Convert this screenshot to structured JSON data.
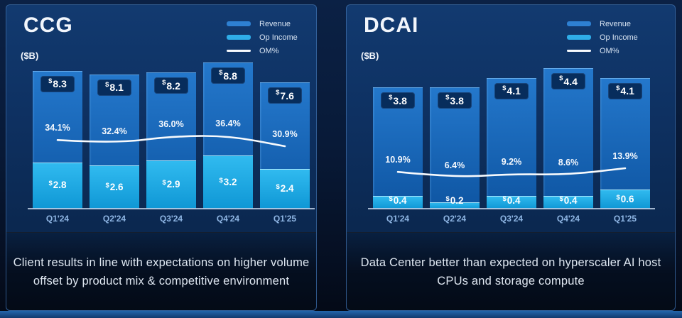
{
  "colors": {
    "background": "#081a38",
    "panel_border": "#5c92d2",
    "revenue_bar_top": "#2478cc",
    "revenue_bar_bottom": "#0e55a2",
    "op_income_top": "#31bbf0",
    "op_income_bottom": "#0f97d5",
    "om_line": "#f7fafd",
    "value_pill_bg": "#072d5c",
    "legend_revenue": "#2e80d2",
    "legend_op_income": "#2fade8",
    "text_primary": "#f2f6fc",
    "text_muted": "#8fb6e4",
    "caption_text": "#dfe7f1",
    "bottom_strip": "#2466ac"
  },
  "chart_data": [
    {
      "type": "bar",
      "title": "CCG",
      "units_label": "($B)",
      "categories": [
        "Q1'24",
        "Q2'24",
        "Q3'24",
        "Q4'24",
        "Q1'25"
      ],
      "series": [
        {
          "name": "Revenue",
          "type": "bar",
          "unit": "$B",
          "values": [
            8.3,
            8.1,
            8.2,
            8.8,
            7.6
          ],
          "labels": [
            "$8.3",
            "$8.1",
            "$8.2",
            "$8.8",
            "$7.6"
          ]
        },
        {
          "name": "Op Income",
          "type": "bar",
          "unit": "$B",
          "values": [
            2.8,
            2.6,
            2.9,
            3.2,
            2.4
          ],
          "labels": [
            "$2.8",
            "$2.6",
            "$2.9",
            "$3.2",
            "$2.4"
          ]
        },
        {
          "name": "OM%",
          "type": "line",
          "unit": "%",
          "values": [
            34.1,
            32.4,
            36.0,
            36.4,
            30.9
          ],
          "labels": [
            "34.1%",
            "32.4%",
            "36.0%",
            "36.4%",
            "30.9%"
          ]
        }
      ],
      "ylim": [
        0,
        8.85
      ],
      "legend_position": "top-right",
      "grid": false,
      "caption_lines": [
        "Client results in line with expectations on higher volume",
        "offset by product mix & competitive environment"
      ]
    },
    {
      "type": "bar",
      "title": "DCAI",
      "units_label": "($B)",
      "categories": [
        "Q1'24",
        "Q2'24",
        "Q3'24",
        "Q4'24",
        "Q1'25"
      ],
      "series": [
        {
          "name": "Revenue",
          "type": "bar",
          "unit": "$B",
          "values": [
            3.8,
            3.8,
            4.1,
            4.4,
            4.1
          ],
          "labels": [
            "$3.8",
            "$3.8",
            "$4.1",
            "$4.4",
            "$4.1"
          ]
        },
        {
          "name": "Op Income",
          "type": "bar",
          "unit": "$B",
          "values": [
            0.4,
            0.2,
            0.4,
            0.4,
            0.6
          ],
          "labels": [
            "$0.4",
            "$0.2",
            "$0.4",
            "$0.4",
            "$0.6"
          ]
        },
        {
          "name": "OM%",
          "type": "line",
          "unit": "%",
          "values": [
            10.9,
            6.4,
            9.2,
            8.6,
            13.9
          ],
          "labels": [
            "10.9%",
            "6.4%",
            "9.2%",
            "8.6%",
            "13.9%"
          ]
        }
      ],
      "ylim": [
        0,
        4.6
      ],
      "legend_position": "top-right",
      "grid": false,
      "caption_lines": [
        "Data Center better than expected on hyperscaler AI host",
        "CPUs and storage compute"
      ]
    }
  ]
}
